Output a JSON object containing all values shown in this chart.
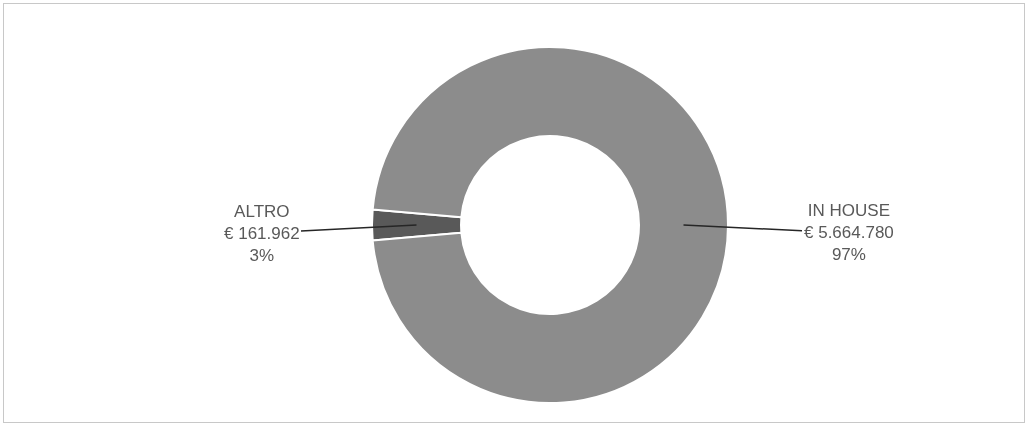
{
  "chart_data": {
    "type": "donut",
    "categories": [
      "ALTRO",
      "IN HOUSE"
    ],
    "values": [
      161962,
      5664780
    ],
    "colors": [
      "#595959",
      "#8c8c8c"
    ],
    "value_labels": [
      "€ 161.962\n3%",
      "€ 5.664.780\n97%"
    ],
    "legend": false
  }
}
